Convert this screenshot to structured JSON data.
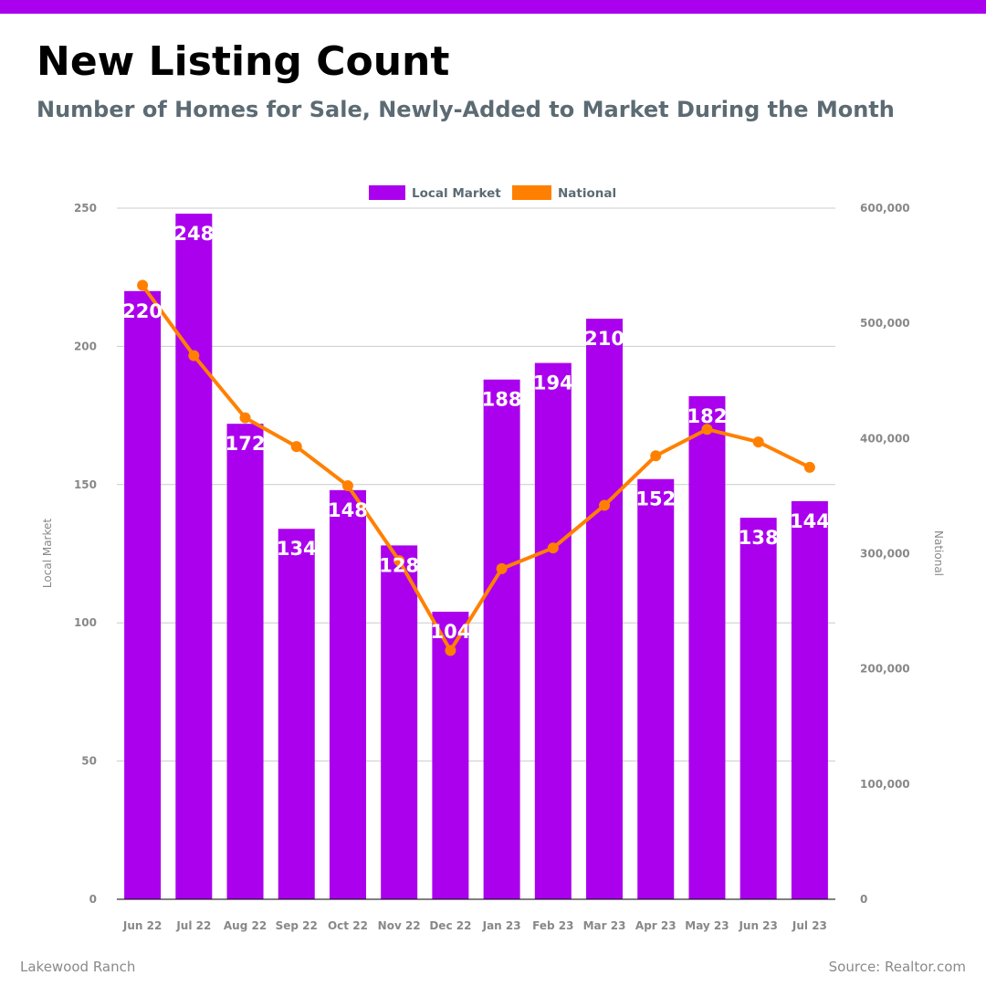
{
  "header": {
    "title": "New Listing Count",
    "subtitle": "Number of Homes for Sale, Newly-Added to Market During the Month"
  },
  "footer": {
    "left": "Lakewood Ranch",
    "right": "Source: Realtor.com"
  },
  "colors": {
    "accent": "#aa00ee",
    "national": "#ff8000",
    "subtitle": "#5c6b73",
    "grid": "#cccccc",
    "tick": "#888888"
  },
  "chart_data": {
    "type": "bar",
    "title": "New Listing Count",
    "subtitle": "Number of Homes for Sale, Newly-Added to Market During the Month",
    "categories": [
      "Jun 22",
      "Jul 22",
      "Aug 22",
      "Sep 22",
      "Oct 22",
      "Nov 22",
      "Dec 22",
      "Jan 23",
      "Feb 23",
      "Mar 23",
      "Apr 23",
      "May 23",
      "Jun 23",
      "Jul 23"
    ],
    "series": [
      {
        "name": "Local Market",
        "type": "bar",
        "axis": "left",
        "color": "#aa00ee",
        "values": [
          220,
          248,
          172,
          134,
          148,
          128,
          104,
          188,
          194,
          210,
          152,
          182,
          138,
          144
        ],
        "data_labels": [
          "220",
          "248",
          "172",
          "134",
          "148",
          "128",
          "104",
          "188",
          "194",
          "210",
          "152",
          "182",
          "138",
          "144"
        ]
      },
      {
        "name": "National",
        "type": "line",
        "axis": "right",
        "color": "#ff8000",
        "values": [
          533000,
          472000,
          418000,
          393000,
          359000,
          294000,
          216000,
          287000,
          305000,
          342000,
          385000,
          408000,
          397000,
          375000
        ]
      }
    ],
    "left_axis": {
      "label": "Local Market",
      "min": 0,
      "max": 250,
      "ticks": [
        0,
        50,
        100,
        150,
        200,
        250
      ],
      "tick_labels": [
        "0",
        "50",
        "100",
        "150",
        "200",
        "250"
      ]
    },
    "right_axis": {
      "label": "National",
      "min": 0,
      "max": 600000,
      "ticks": [
        0,
        100000,
        200000,
        300000,
        400000,
        500000,
        600000
      ],
      "tick_labels": [
        "0",
        "100,000",
        "200,000",
        "300,000",
        "400,000",
        "500,000",
        "600,000"
      ]
    },
    "grid": true,
    "legend_position": "top-center"
  }
}
